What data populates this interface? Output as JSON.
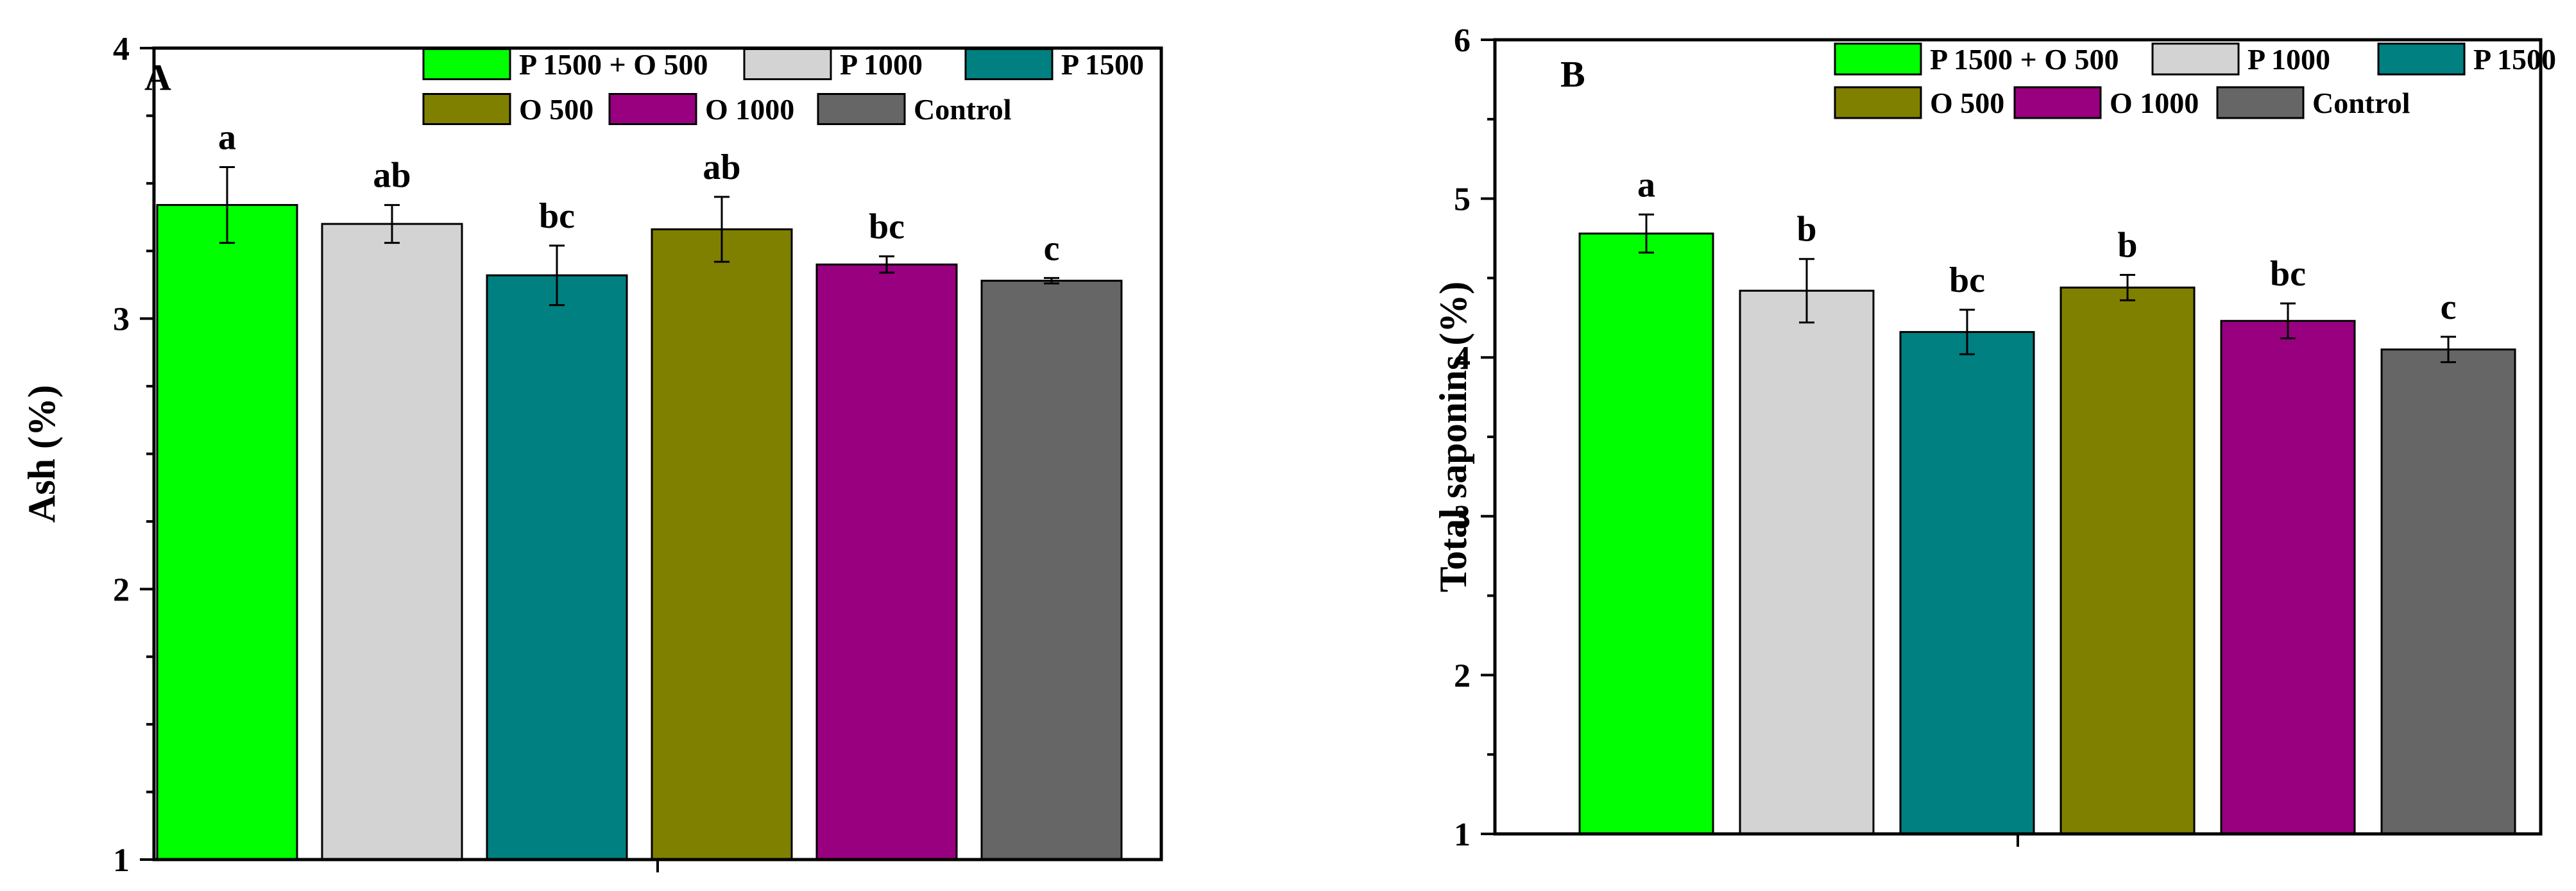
{
  "chart_data": [
    {
      "type": "bar",
      "panel_label": "A",
      "title": "",
      "xlabel": "",
      "ylabel": "Ash (%)",
      "ylim": [
        1,
        4
      ],
      "yticks": [
        "1",
        "2",
        "3",
        "4"
      ],
      "categories": [
        "P 1500 + O 500",
        "P 1000",
        "P 1500",
        "O 500",
        "O 1000",
        "Control"
      ],
      "values": [
        3.42,
        3.35,
        3.16,
        3.33,
        3.2,
        3.14
      ],
      "errors": [
        0.14,
        0.07,
        0.11,
        0.12,
        0.03,
        0.01
      ],
      "letters": [
        "a",
        "ab",
        "bc",
        "ab",
        "bc",
        "c"
      ],
      "legend": "top-right",
      "grid": false
    },
    {
      "type": "bar",
      "panel_label": "B",
      "title": "",
      "xlabel": "",
      "ylabel": "Total saponins (%)",
      "ylim": [
        1,
        6
      ],
      "yticks": [
        "1",
        "2",
        "3",
        "4",
        "5",
        "6"
      ],
      "categories": [
        "P 1500 + O 500",
        "P 1000",
        "P 1500",
        "O 500",
        "O 1000",
        "Control"
      ],
      "values": [
        4.78,
        4.42,
        4.16,
        4.44,
        4.23,
        4.05
      ],
      "errors": [
        0.12,
        0.2,
        0.14,
        0.08,
        0.11,
        0.08
      ],
      "letters": [
        "a",
        "b",
        "bc",
        "b",
        "bc",
        "c"
      ],
      "legend": "top-right",
      "grid": false
    }
  ],
  "series_colors": [
    "#00ff00",
    "#d3d3d3",
    "#008080",
    "#808000",
    "#990080",
    "#666666"
  ]
}
